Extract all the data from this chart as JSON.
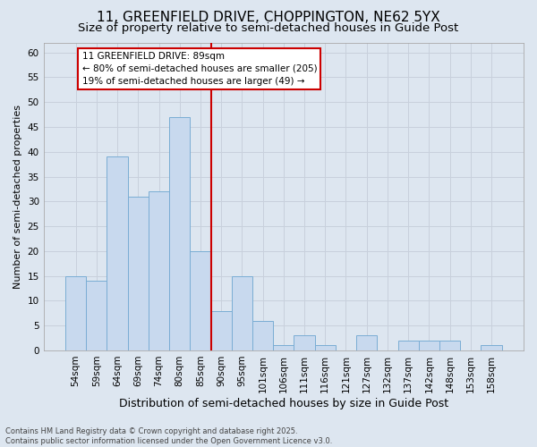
{
  "title_line1": "11, GREENFIELD DRIVE, CHOPPINGTON, NE62 5YX",
  "title_line2": "Size of property relative to semi-detached houses in Guide Post",
  "xlabel": "Distribution of semi-detached houses by size in Guide Post",
  "ylabel": "Number of semi-detached properties",
  "categories": [
    "54sqm",
    "59sqm",
    "64sqm",
    "69sqm",
    "74sqm",
    "80sqm",
    "85sqm",
    "90sqm",
    "95sqm",
    "101sqm",
    "106sqm",
    "111sqm",
    "116sqm",
    "121sqm",
    "127sqm",
    "132sqm",
    "137sqm",
    "142sqm",
    "148sqm",
    "153sqm",
    "158sqm"
  ],
  "values": [
    15,
    14,
    39,
    31,
    32,
    47,
    20,
    8,
    15,
    6,
    1,
    3,
    1,
    0,
    3,
    0,
    2,
    2,
    2,
    0,
    1
  ],
  "bar_color": "#c8d9ee",
  "bar_edge_color": "#7aadd4",
  "vline_color": "#cc0000",
  "annotation_title": "11 GREENFIELD DRIVE: 89sqm",
  "annotation_line1": "← 80% of semi-detached houses are smaller (205)",
  "annotation_line2": "19% of semi-detached houses are larger (49) →",
  "annotation_box_color": "white",
  "annotation_box_edge": "#cc0000",
  "ylim": [
    0,
    62
  ],
  "yticks": [
    0,
    5,
    10,
    15,
    20,
    25,
    30,
    35,
    40,
    45,
    50,
    55,
    60
  ],
  "grid_color": "#c8d0dc",
  "bg_color": "#dde6f0",
  "footnote": "Contains HM Land Registry data © Crown copyright and database right 2025.\nContains public sector information licensed under the Open Government Licence v3.0.",
  "title_fontsize": 11,
  "subtitle_fontsize": 9.5,
  "tick_fontsize": 7.5,
  "xlabel_fontsize": 9,
  "ylabel_fontsize": 8,
  "annot_fontsize": 7.5,
  "footnote_fontsize": 6
}
